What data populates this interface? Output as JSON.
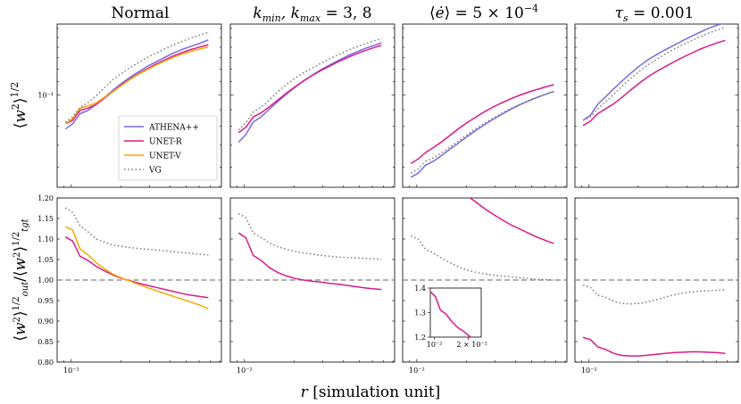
{
  "chart_data": {
    "type": "line",
    "xlabel": "r [simulation unit]",
    "xscale": "log",
    "xlim": [
      0.0082,
      0.082
    ],
    "xtick_label": "10⁻²",
    "row_ylabels": [
      "⟨w²⟩^1/2",
      "⟨w²⟩_out^1/2 / ⟨w²⟩_tgt^1/2"
    ],
    "top_row": {
      "yscale": "log",
      "ylim": [
        0.052,
        0.165
      ],
      "ytick_label": "10⁻¹"
    },
    "bottom_row": {
      "yscale": "linear",
      "ylim": [
        0.8,
        1.2
      ],
      "yticks": [
        "0.80",
        "0.85",
        "0.90",
        "0.95",
        "1.00",
        "1.05",
        "1.10",
        "1.15",
        "1.20"
      ],
      "reference_line": 1.0
    },
    "colors": {
      "ATHENA++": "#7b68e0",
      "UNET-R": "#d81b8c",
      "UNET-V": "#f5a800",
      "VG": "#808080",
      "reference": "#808080"
    },
    "x": [
      0.0092,
      0.0102,
      0.0113,
      0.0126,
      0.0142,
      0.016,
      0.018,
      0.0203,
      0.0229,
      0.0259,
      0.0292,
      0.033,
      0.0372,
      0.042,
      0.0474,
      0.0535,
      0.0604,
      0.0682
    ],
    "legend": {
      "location": "lower right of first top panel",
      "entries": [
        "ATHENA++",
        "UNET-R",
        "UNET-V",
        "VG"
      ]
    },
    "panels": [
      {
        "title": "Normal",
        "top_series": [
          {
            "name": "ATHENA++",
            "values": [
              0.0785,
              0.0815,
              0.0875,
              0.0895,
              0.0935,
              0.0985,
              0.1035,
              0.1085,
              0.1135,
              0.118,
              0.1225,
              0.1265,
              0.1305,
              0.1345,
              0.138,
              0.141,
              0.144,
              0.1475
            ]
          },
          {
            "name": "UNET-R",
            "values": [
              0.0815,
              0.0835,
              0.0895,
              0.091,
              0.0935,
              0.098,
              0.1025,
              0.1075,
              0.1122,
              0.1165,
              0.1205,
              0.1245,
              0.1282,
              0.1318,
              0.135,
              0.1378,
              0.1402,
              0.1426
            ]
          },
          {
            "name": "UNET-V",
            "values": [
              0.0815,
              0.0845,
              0.091,
              0.0925,
              0.0945,
              0.0985,
              0.1025,
              0.107,
              0.1117,
              0.116,
              0.1198,
              0.1236,
              0.1272,
              0.1305,
              0.1335,
              0.136,
              0.1383,
              0.1405
            ]
          },
          {
            "name": "VG",
            "values": [
              0.0825,
              0.0855,
              0.0915,
              0.0945,
              0.0995,
              0.1055,
              0.1115,
              0.1165,
              0.1215,
              0.126,
              0.1305,
              0.1345,
              0.1385,
              0.1425,
              0.146,
              0.1495,
              0.1525,
              0.1555
            ]
          }
        ],
        "bottom_series": [
          {
            "name": "UNET-R",
            "values": [
              1.105,
              1.095,
              1.058,
              1.048,
              1.033,
              1.022,
              1.012,
              1.004,
              0.998,
              0.992,
              0.987,
              0.982,
              0.977,
              0.972,
              0.967,
              0.963,
              0.96,
              0.957
            ]
          },
          {
            "name": "UNET-V",
            "values": [
              1.13,
              1.122,
              1.076,
              1.062,
              1.042,
              1.027,
              1.014,
              1.005,
              0.997,
              0.989,
              0.981,
              0.974,
              0.967,
              0.96,
              0.953,
              0.946,
              0.939,
              0.93
            ]
          },
          {
            "name": "VG",
            "values": [
              1.176,
              1.165,
              1.132,
              1.118,
              1.1,
              1.092,
              1.085,
              1.082,
              1.079,
              1.077,
              1.075,
              1.073,
              1.071,
              1.069,
              1.067,
              1.065,
              1.063,
              1.061
            ]
          }
        ]
      },
      {
        "title": "k_min, k_max = 3, 8",
        "top_series": [
          {
            "name": "ATHENA++",
            "values": [
              0.0715,
              0.0755,
              0.0825,
              0.0855,
              0.0905,
              0.0955,
              0.1005,
              0.1055,
              0.1105,
              0.115,
              0.1195,
              0.1235,
              0.1275,
              0.1315,
              0.135,
              0.1385,
              0.1415,
              0.1445
            ]
          },
          {
            "name": "UNET-R",
            "values": [
              0.0765,
              0.0795,
              0.0855,
              0.088,
              0.092,
              0.0965,
              0.1012,
              0.1058,
              0.1104,
              0.1148,
              0.1188,
              0.1226,
              0.1264,
              0.13,
              0.1333,
              0.1365,
              0.1393,
              0.142
            ]
          },
          {
            "name": "VG",
            "values": [
              0.078,
              0.082,
              0.0885,
              0.0915,
              0.0965,
              0.1025,
              0.1075,
              0.1125,
              0.117,
              0.121,
              0.125,
              0.129,
              0.1328,
              0.1365,
              0.14,
              0.1432,
              0.1462,
              0.149
            ]
          }
        ],
        "bottom_series": [
          {
            "name": "UNET-R",
            "values": [
              1.115,
              1.103,
              1.06,
              1.048,
              1.03,
              1.018,
              1.01,
              1.004,
              1.0,
              0.997,
              0.995,
              0.992,
              0.99,
              0.987,
              0.984,
              0.981,
              0.979,
              0.977
            ]
          },
          {
            "name": "VG",
            "values": [
              1.162,
              1.152,
              1.115,
              1.104,
              1.09,
              1.081,
              1.075,
              1.07,
              1.066,
              1.063,
              1.06,
              1.058,
              1.056,
              1.055,
              1.054,
              1.053,
              1.052,
              1.051
            ]
          }
        ]
      },
      {
        "title": "⟨ė⟩ = 5 × 10⁻⁴",
        "top_series": [
          {
            "name": "ATHENA++",
            "values": [
              0.0558,
              0.0575,
              0.0608,
              0.0625,
              0.0652,
              0.0682,
              0.0712,
              0.0745,
              0.0778,
              0.081,
              0.0842,
              0.0872,
              0.0902,
              0.093,
              0.0956,
              0.098,
              0.1003,
              0.1025
            ]
          },
          {
            "name": "UNET-R",
            "values": [
              0.0615,
              0.0635,
              0.0665,
              0.0688,
              0.0718,
              0.0752,
              0.0788,
              0.0822,
              0.0855,
              0.0888,
              0.0918,
              0.0946,
              0.0972,
              0.0996,
              0.1018,
              0.1038,
              0.1057,
              0.1075
            ]
          },
          {
            "name": "VG",
            "values": [
              0.0575,
              0.0592,
              0.0625,
              0.064,
              0.0665,
              0.0692,
              0.0722,
              0.0755,
              0.0787,
              0.0818,
              0.0849,
              0.0879,
              0.0907,
              0.0934,
              0.0958,
              0.0982,
              0.1004,
              0.1024
            ]
          }
        ],
        "bottom_series": [
          {
            "name": "UNET-R",
            "values": [
              1.385,
              1.365,
              1.31,
              1.295,
              1.265,
              1.24,
              1.225,
              1.205,
              1.19,
              1.174,
              1.16,
              1.147,
              1.135,
              1.125,
              1.115,
              1.105,
              1.097,
              1.089
            ]
          },
          {
            "name": "VG",
            "values": [
              1.108,
              1.1,
              1.075,
              1.066,
              1.053,
              1.042,
              1.032,
              1.024,
              1.019,
              1.015,
              1.012,
              1.01,
              1.008,
              1.006,
              1.004,
              1.002,
              1.001,
              1.0
            ]
          }
        ],
        "inset": {
          "series": "UNET-R",
          "xlim": [
            0.0092,
            0.026
          ],
          "ylim": [
            1.2,
            1.4
          ],
          "yticks": [
            "1.2",
            "1.3",
            "1.4"
          ],
          "xtick_labels": [
            "10⁻²",
            "2 × 10⁻²"
          ]
        }
      },
      {
        "title": "τ_s = 0.001",
        "top_series": [
          {
            "name": "ATHENA++",
            "values": [
              0.0835,
              0.0865,
              0.0935,
              0.0985,
              0.1045,
              0.1105,
              0.1165,
              0.1225,
              0.128,
              0.133,
              0.1375,
              0.142,
              0.1465,
              0.151,
              0.1555,
              0.16,
              0.1635,
              0.1665
            ]
          },
          {
            "name": "UNET-R",
            "values": [
              0.0805,
              0.083,
              0.0875,
              0.0905,
              0.094,
              0.0985,
              0.1035,
              0.1085,
              0.1135,
              0.118,
              0.122,
              0.1262,
              0.1302,
              0.134,
              0.1378,
              0.1412,
              0.1443,
              0.147
            ]
          },
          {
            "name": "VG",
            "values": [
              0.0835,
              0.0855,
              0.0905,
              0.095,
              0.1005,
              0.1065,
              0.1125,
              0.118,
              0.1235,
              0.1285,
              0.1335,
              0.138,
              0.1422,
              0.1465,
              0.1505,
              0.1545,
              0.158,
              0.1612
            ]
          }
        ],
        "bottom_series": [
          {
            "name": "UNET-R",
            "values": [
              0.86,
              0.855,
              0.837,
              0.831,
              0.821,
              0.816,
              0.815,
              0.815,
              0.817,
              0.819,
              0.821,
              0.823,
              0.824,
              0.825,
              0.825,
              0.824,
              0.823,
              0.821
            ]
          },
          {
            "name": "VG",
            "values": [
              0.988,
              0.982,
              0.963,
              0.958,
              0.948,
              0.943,
              0.942,
              0.943,
              0.947,
              0.952,
              0.958,
              0.964,
              0.968,
              0.971,
              0.973,
              0.974,
              0.975,
              0.976
            ]
          }
        ]
      }
    ]
  }
}
